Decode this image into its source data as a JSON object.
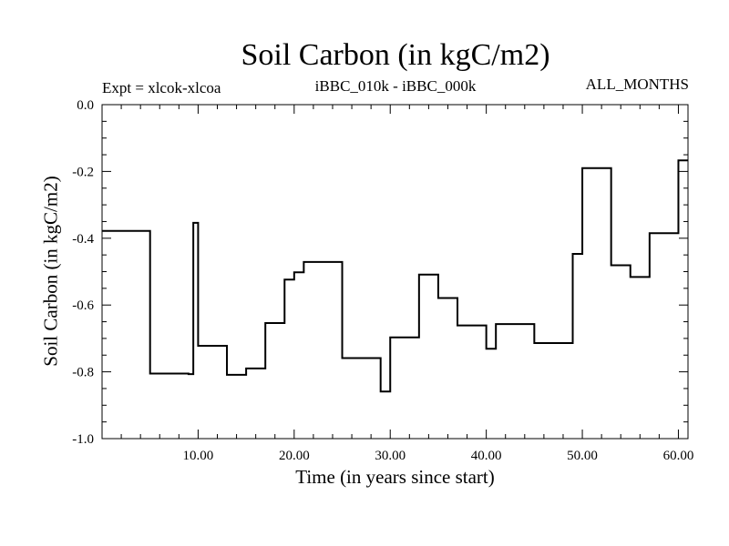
{
  "chart_data": {
    "type": "line",
    "title": "Soil Carbon (in kgC/m2)",
    "subtitle": "iBBC_010k - iBBC_000k",
    "annotation_left": "Expt = xlcok-xlcoa",
    "annotation_right": "ALL_MONTHS",
    "xlabel": "Time (in years since start)",
    "ylabel": "Soil Carbon (in kgC/m2)",
    "xlim": [
      0.0,
      61.0
    ],
    "ylim": [
      -1.0,
      0.0
    ],
    "xticks": [
      10,
      20,
      30,
      40,
      50,
      60
    ],
    "xtick_labels": [
      "10.00",
      "20.00",
      "30.00",
      "40.00",
      "50.00",
      "60.00"
    ],
    "yticks": [
      0.0,
      -0.2,
      -0.4,
      -0.6,
      -0.8,
      -1.0
    ],
    "ytick_labels": [
      "0.0",
      "-0.2",
      "-0.4",
      "-0.6",
      "-0.8",
      "-1.0"
    ],
    "grid": false,
    "series": [
      {
        "color": "#000000",
        "step": true,
        "x": [
          0.0,
          5.0,
          9.0,
          9.5,
          10.0,
          13.0,
          15.0,
          17.0,
          19.0,
          20.0,
          21.0,
          25.0,
          29.0,
          30.0,
          33.0,
          35.0,
          37.0,
          40.0,
          41.0,
          45.0,
          49.0,
          50.0,
          53.0,
          55.0,
          57.0,
          60.0
        ],
        "y": [
          -0.378,
          -0.805,
          -0.807,
          -0.354,
          -0.722,
          -0.809,
          -0.79,
          -0.654,
          -0.524,
          -0.502,
          -0.471,
          -0.759,
          -0.859,
          -0.697,
          -0.509,
          -0.579,
          -0.661,
          -0.731,
          -0.657,
          -0.714,
          -0.447,
          -0.19,
          -0.481,
          -0.516,
          -0.385,
          -0.167
        ]
      }
    ]
  }
}
